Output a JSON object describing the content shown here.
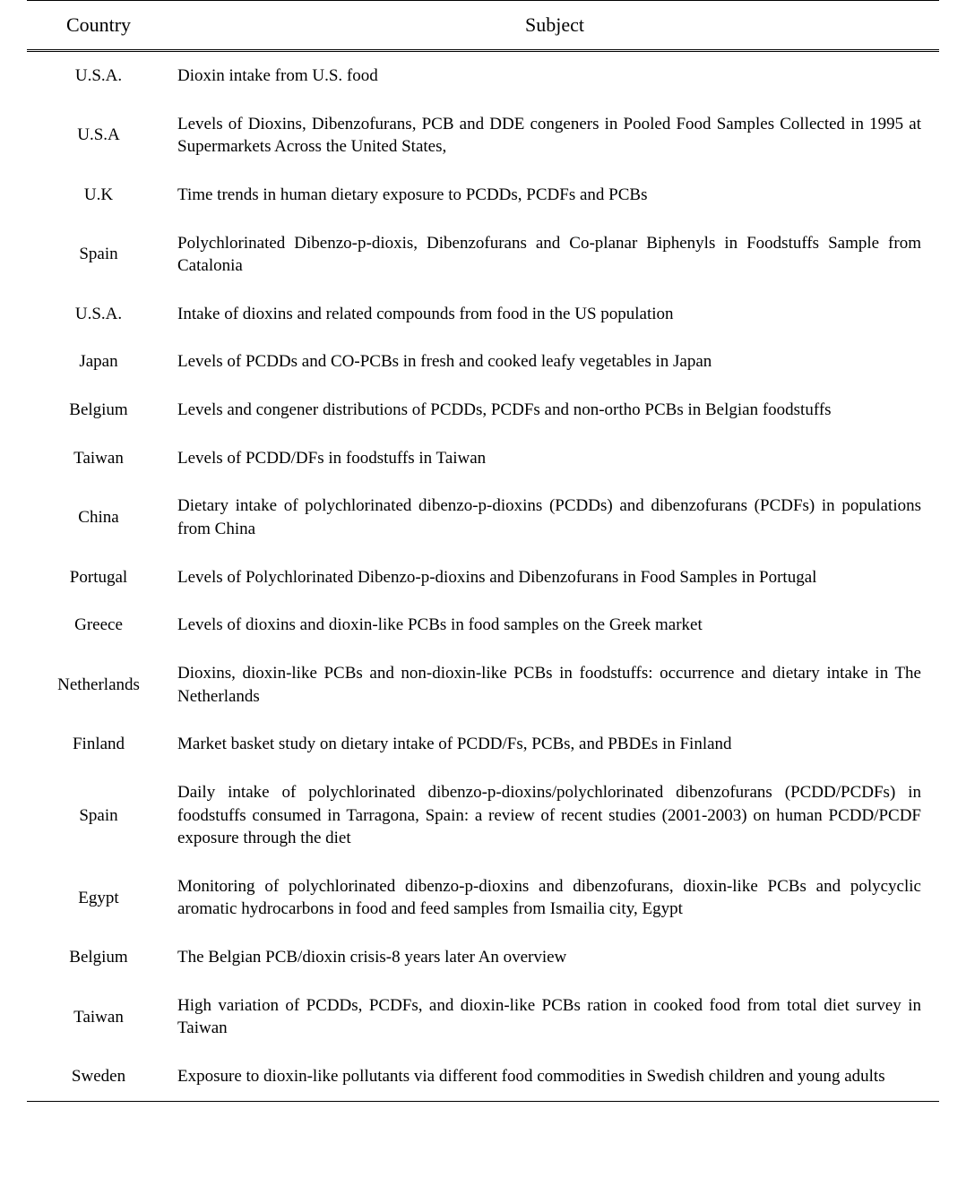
{
  "table": {
    "columns": {
      "country": "Country",
      "subject": "Subject"
    },
    "rows": [
      {
        "country": "U.S.A.",
        "subject": "Dioxin intake from U.S. food"
      },
      {
        "country": "U.S.A",
        "subject": "Levels of Dioxins, Dibenzofurans, PCB and DDE congeners in Pooled Food Samples Collected in 1995 at Supermarkets Across the United States,"
      },
      {
        "country": "U.K",
        "subject": "Time trends in human dietary exposure to PCDDs, PCDFs and PCBs"
      },
      {
        "country": "Spain",
        "subject": "Polychlorinated Dibenzo-p-dioxis, Dibenzofurans and Co-planar Biphenyls in Foodstuffs Sample from Catalonia"
      },
      {
        "country": "U.S.A.",
        "subject": "Intake of dioxins and related compounds from food in the US population"
      },
      {
        "country": "Japan",
        "subject": "Levels of PCDDs and CO-PCBs in fresh and cooked leafy vegetables in Japan"
      },
      {
        "country": "Belgium",
        "subject": "Levels and congener distributions of PCDDs, PCDFs and non-ortho PCBs in Belgian foodstuffs"
      },
      {
        "country": "Taiwan",
        "subject": "Levels of PCDD/DFs in foodstuffs in Taiwan"
      },
      {
        "country": "China",
        "subject": "Dietary intake of polychlorinated dibenzo-p-dioxins (PCDDs) and dibenzofurans (PCDFs) in populations from China"
      },
      {
        "country": "Portugal",
        "subject": "Levels of Polychlorinated Dibenzo-p-dioxins and Dibenzofurans in Food Samples in Portugal"
      },
      {
        "country": "Greece",
        "subject": "Levels of dioxins and dioxin-like PCBs in food samples on the Greek market"
      },
      {
        "country": "Netherlands",
        "subject": "Dioxins, dioxin-like PCBs and non-dioxin-like PCBs in foodstuffs: occurrence and dietary intake in The Netherlands"
      },
      {
        "country": "Finland",
        "subject": "Market basket study on dietary intake of PCDD/Fs, PCBs, and PBDEs in Finland"
      },
      {
        "country": "Spain",
        "subject": "Daily intake of polychlorinated dibenzo-p-dioxins/polychlorinated dibenzofurans (PCDD/PCDFs) in foodstuffs consumed in Tarragona, Spain: a review of recent studies (2001-2003) on human PCDD/PCDF exposure through the diet"
      },
      {
        "country": "Egypt",
        "subject": "Monitoring of polychlorinated dibenzo-p-dioxins and dibenzofurans, dioxin-like PCBs and polycyclic aromatic hydrocarbons in food and feed samples from Ismailia city, Egypt"
      },
      {
        "country": "Belgium",
        "subject": "The Belgian PCB/dioxin crisis-8 years later An overview"
      },
      {
        "country": "Taiwan",
        "subject": "High variation of PCDDs, PCDFs, and dioxin-like PCBs ration in cooked food from total diet survey in Taiwan"
      },
      {
        "country": "Sweden",
        "subject": "Exposure to dioxin-like pollutants via different food commodities in Swedish children and young adults"
      }
    ],
    "styling": {
      "border_top": "1.5px solid #000000",
      "border_bottom": "1.5px solid #000000",
      "header_border_bottom": "3px double #000000",
      "background_color": "#ffffff",
      "text_color": "#000000",
      "header_fontsize": 22,
      "body_fontsize": 19,
      "font_family": "Times New Roman",
      "country_column_width": 160,
      "country_align": "center",
      "subject_align": "justify",
      "row_padding_vertical": 14,
      "line_height": 1.35
    }
  }
}
